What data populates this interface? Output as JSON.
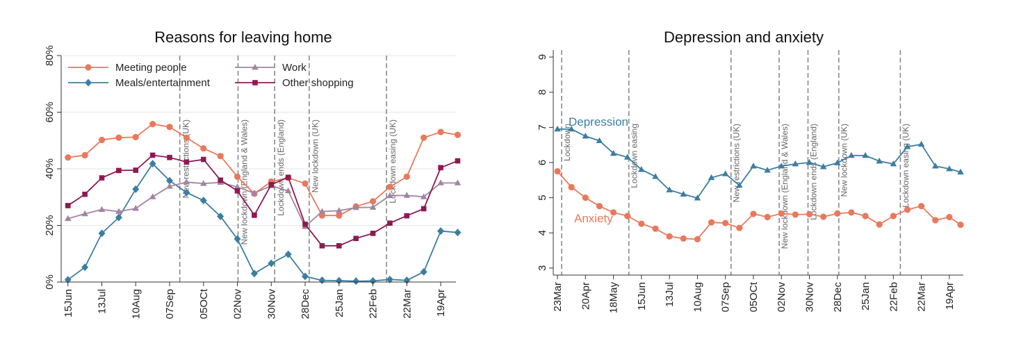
{
  "chart_data": [
    {
      "type": "line",
      "title": "Reasons for leaving home",
      "xlabel": "",
      "ylabel": "",
      "x_ticks": [
        "15Jun",
        "13Jul",
        "10Aug",
        "07Sep",
        "05OCt",
        "02Nov",
        "30Nov",
        "28Dec",
        "25Jan",
        "22Feb",
        "22Mar",
        "19Apr"
      ],
      "y_ticks": [
        "0%",
        "20%",
        "40%",
        "60%",
        "80%"
      ],
      "ylim": [
        0,
        80
      ],
      "xlim": [
        -0.2,
        11.45
      ],
      "grid": true,
      "legend": "top-left",
      "legend_entries": [
        "Meeting people",
        "Meals/entertainment",
        "Work",
        "Other shopping"
      ],
      "series": [
        {
          "name": "Meeting people",
          "color": "#e9795c",
          "marker": "circle",
          "x": [
            0,
            0.5,
            1,
            1.5,
            2,
            2.5,
            3,
            3.5,
            4,
            4.5,
            5,
            5.5,
            6,
            6.5,
            7,
            7.5,
            8,
            8.5,
            9,
            9.5,
            10,
            10.5,
            11,
            11.5
          ],
          "values": [
            44,
            44.8,
            50.2,
            51,
            51.2,
            55.8,
            54.8,
            51,
            47.2,
            44.5,
            37.2,
            31.2,
            35.5,
            36.8,
            34.8,
            23.5,
            23.5,
            26.7,
            28.5,
            33.6,
            37.2,
            51,
            53,
            52
          ]
        },
        {
          "name": "Meals/entertainment",
          "color": "#3b7ea1",
          "marker": "diamond",
          "x": [
            0,
            0.5,
            1,
            1.5,
            2,
            2.5,
            3,
            3.5,
            4,
            4.5,
            5,
            5.5,
            6,
            6.5,
            7,
            7.5,
            8,
            8.5,
            9,
            9.5,
            10,
            10.5,
            11,
            11.5
          ],
          "values": [
            0.8,
            5.2,
            17.2,
            22.8,
            32.8,
            41.8,
            35.8,
            31.6,
            28.8,
            23.2,
            15.2,
            3,
            6.6,
            9.8,
            2,
            0.6,
            0.5,
            0.3,
            0.4,
            0.9,
            0.6,
            3.6,
            18,
            17.5
          ]
        },
        {
          "name": "Work",
          "color": "#a384a2",
          "marker": "triangle",
          "x": [
            0,
            0.5,
            1,
            1.5,
            2,
            2.5,
            3,
            3.5,
            4,
            4.5,
            5,
            5.5,
            6,
            6.5,
            7,
            7.5,
            8,
            8.5,
            9,
            9.5,
            10,
            10.5,
            11,
            11.5
          ],
          "values": [
            22.4,
            24.1,
            25.6,
            24.9,
            26,
            30.1,
            33.8,
            35.3,
            34.8,
            35.2,
            33.6,
            31.4,
            34,
            32.2,
            19.6,
            24.9,
            25.2,
            26.3,
            26.4,
            30.5,
            30.6,
            30.1,
            35,
            35
          ]
        },
        {
          "name": "Other shopping",
          "color": "#8c1a52",
          "marker": "square",
          "x": [
            0,
            0.5,
            1,
            1.5,
            2,
            2.5,
            3,
            3.5,
            4,
            4.5,
            5,
            5.5,
            6,
            6.5,
            7,
            7.5,
            8,
            8.5,
            9,
            9.5,
            10,
            10.5,
            11,
            11.5
          ],
          "values": [
            27,
            31,
            36.8,
            39.4,
            39.5,
            44.8,
            44,
            42.4,
            43.3,
            36,
            32.2,
            23.6,
            34.4,
            37,
            20.4,
            12.8,
            12.8,
            15.4,
            17.2,
            20.8,
            23.4,
            25.9,
            40.4,
            42.8
          ]
        }
      ],
      "vlines": [
        {
          "x": 3.3,
          "label": "New restrictions (UK)"
        },
        {
          "x": 5.02,
          "label": "New lockdown (England & Wales)"
        },
        {
          "x": 6.1,
          "label": "Lockdown ends (England)"
        },
        {
          "x": 7.12,
          "label": "New lockdown (UK)"
        },
        {
          "x": 9.4,
          "label": "Lockdown easing (UK)"
        }
      ]
    },
    {
      "type": "line",
      "title": "Depression and anxiety",
      "xlabel": "",
      "ylabel": "",
      "x_ticks": [
        "23Mar",
        "20Apr",
        "18May",
        "15Jun",
        "13Jul",
        "10Aug",
        "07Sep",
        "05OCt",
        "02Nov",
        "30Nov",
        "28Dec",
        "25Jan",
        "22Feb",
        "22Mar",
        "19Apr"
      ],
      "y_ticks": [
        "3",
        "4",
        "5",
        "6",
        "7",
        "8",
        "9"
      ],
      "ylim": [
        2.8,
        9.2
      ],
      "xlim": [
        -0.15,
        14.5
      ],
      "grid": false,
      "series_labels": [
        "Depression",
        "Anxiety"
      ],
      "series": [
        {
          "name": "Depression",
          "color": "#3b7ea1",
          "marker": "triangle",
          "x": [
            0,
            0.5,
            1,
            1.5,
            2,
            2.5,
            3,
            3.5,
            4,
            4.5,
            5,
            5.5,
            6,
            6.5,
            7,
            7.5,
            8,
            8.5,
            9,
            9.5,
            10,
            10.5,
            11,
            11.5,
            12,
            12.5,
            13,
            13.5,
            14,
            14.4
          ],
          "values": [
            6.95,
            6.95,
            6.75,
            6.62,
            6.26,
            6.15,
            5.8,
            5.6,
            5.22,
            5.1,
            4.99,
            5.57,
            5.68,
            5.35,
            5.9,
            5.78,
            5.9,
            5.96,
            6,
            5.88,
            5.99,
            6.2,
            6.2,
            6.04,
            5.96,
            6.45,
            6.52,
            5.9,
            5.82,
            5.73
          ]
        },
        {
          "name": "Anxiety",
          "color": "#e9795c",
          "marker": "circle",
          "x": [
            0,
            0.5,
            1,
            1.5,
            2,
            2.5,
            3,
            3.5,
            4,
            4.5,
            5,
            5.5,
            6,
            6.5,
            7,
            7.5,
            8,
            8.5,
            9,
            9.5,
            10,
            10.5,
            11,
            11.5,
            12,
            12.5,
            13,
            13.5,
            14,
            14.4
          ],
          "values": [
            5.75,
            5.3,
            5,
            4.76,
            4.58,
            4.48,
            4.26,
            4.12,
            3.9,
            3.84,
            3.82,
            4.3,
            4.28,
            4.14,
            4.54,
            4.45,
            4.55,
            4.52,
            4.53,
            4.46,
            4.55,
            4.58,
            4.48,
            4.24,
            4.48,
            4.66,
            4.76,
            4.36,
            4.45,
            4.23
          ]
        }
      ],
      "vlines": [
        {
          "x": 0.15,
          "label": "Lockdown"
        },
        {
          "x": 2.55,
          "label": "Lockdown easing"
        },
        {
          "x": 6.2,
          "label": "New restrictions (UK)"
        },
        {
          "x": 7.92,
          "label": "New lockdown (England & Wales)"
        },
        {
          "x": 8.95,
          "label": "Lockdown ends (England)"
        },
        {
          "x": 10.05,
          "label": "New lockdown (UK)"
        },
        {
          "x": 12.25,
          "label": "Lockdown easing (UK)"
        }
      ]
    }
  ]
}
